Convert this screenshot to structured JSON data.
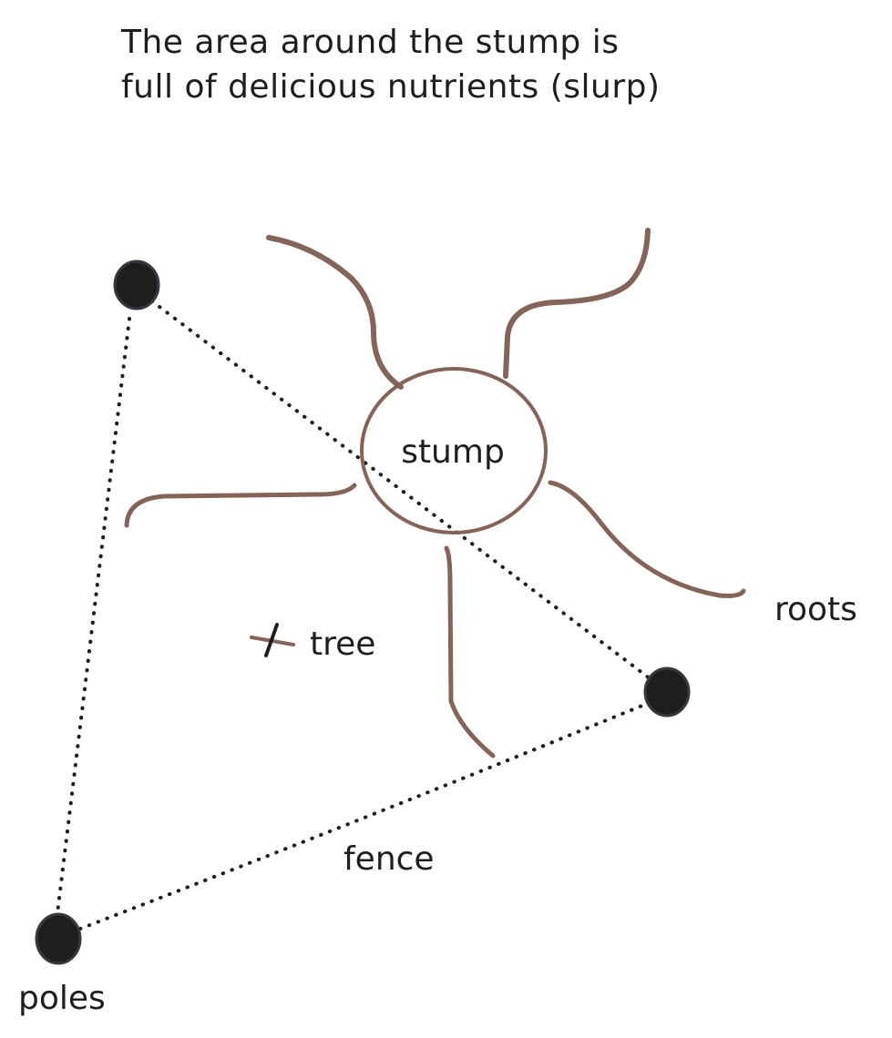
{
  "caption": {
    "line1": "The area around the stump is",
    "line2": "full of delicious nutrients (slurp)"
  },
  "labels": {
    "stump": "stump",
    "roots": "roots",
    "tree": "tree",
    "fence": "fence",
    "poles": "poles"
  },
  "colors": {
    "ink": "#1e1e1e",
    "brown": "#846358",
    "background": "#ffffff"
  }
}
